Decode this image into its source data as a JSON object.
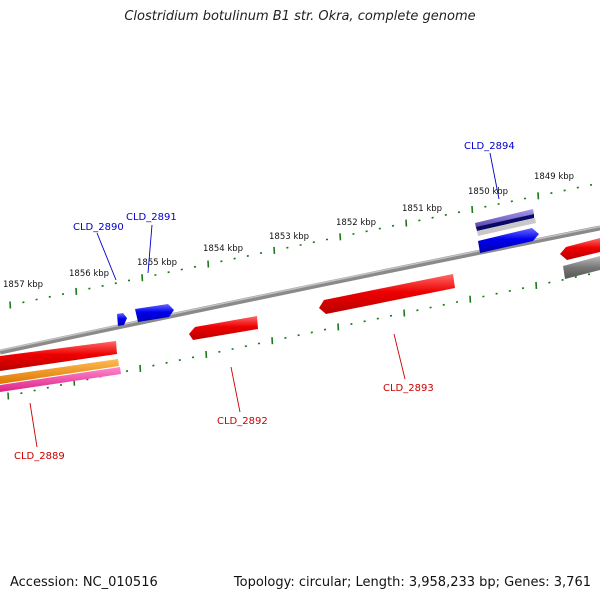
{
  "title": "Clostridium botulinum B1 str. Okra, complete genome",
  "footer": {
    "accession": "Accession: NC_010516",
    "summary": "Topology: circular; Length: 3,958,233 bp; Genes: 3,761"
  },
  "scale_labels": [
    "1857 kbp",
    "1856 kbp",
    "1855 kbp",
    "1854 kbp",
    "1853 kbp",
    "1852 kbp",
    "1851 kbp",
    "1850 kbp",
    "1849 kbp"
  ],
  "gene_labels": {
    "CLD_2889": "CLD_2889",
    "CLD_2890": "CLD_2890",
    "CLD_2891": "CLD_2891",
    "CLD_2892": "CLD_2892",
    "CLD_2893": "CLD_2893",
    "CLD_2894": "CLD_2894"
  },
  "colors": {
    "forward_gene": "#0000ee",
    "reverse_gene": "#ee0000",
    "backbone": "#808080",
    "ticks": "#1a7a1a",
    "orange_feature": "#ee8800",
    "pink_feature": "#ee3399",
    "purple_feature": "#7766cc"
  }
}
